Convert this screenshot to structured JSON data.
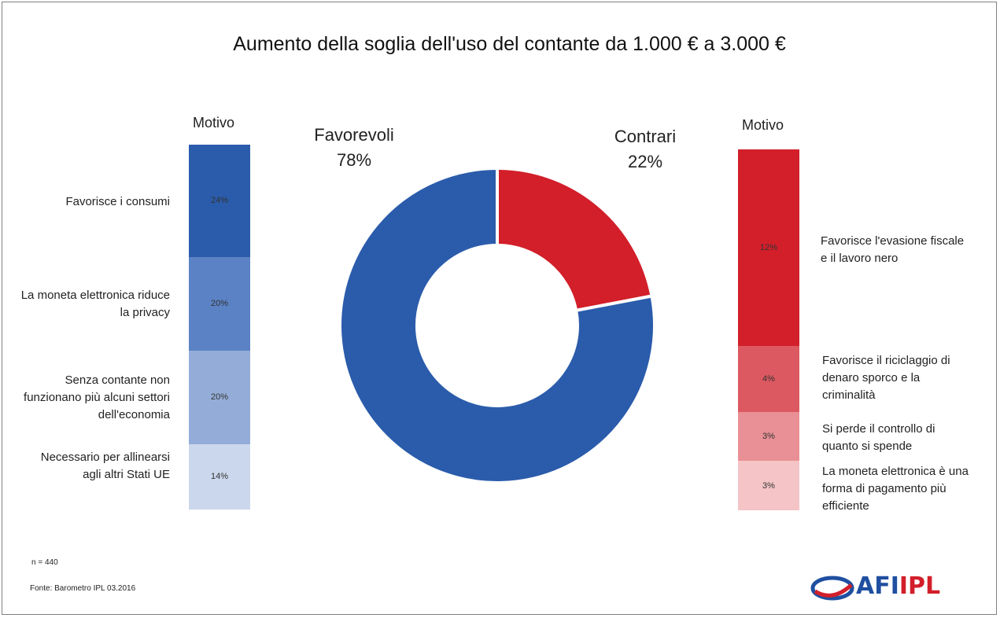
{
  "title": "Aumento della soglia dell'uso del contante da 1.000 € a 3.000 €",
  "left_panel": {
    "heading": "Motivo",
    "segments": [
      {
        "value_label": "24%",
        "reason": "Favorisce i consumi",
        "color": "#2b5cab"
      },
      {
        "value_label": "20%",
        "reason": "La moneta elettronica riduce la privacy",
        "color": "#5b82c4"
      },
      {
        "value_label": "20%",
        "reason": "Senza contante non funzionano più alcuni settori dell'economia",
        "color": "#93add8"
      },
      {
        "value_label": "14%",
        "reason": "Necessario per allinearsi agli altri Stati UE",
        "color": "#cbd7ec"
      }
    ]
  },
  "right_panel": {
    "heading": "Motivo",
    "segments": [
      {
        "value_label": "12%",
        "reason": "Favorisce l'evasione fiscale e il lavoro nero",
        "color": "#d21f2a"
      },
      {
        "value_label": "4%",
        "reason": "Favorisce il riciclaggio di denaro sporco e la criminalità",
        "color": "#dc5961"
      },
      {
        "value_label": "3%",
        "reason": "Si perde il controllo di quanto si spende",
        "color": "#e89095"
      },
      {
        "value_label": "3%",
        "reason": "La moneta elettronica è una forma di pagamento più efficiente",
        "color": "#f4c4c6"
      }
    ]
  },
  "donut_labels": {
    "favorevoli_name": "Favorevoli",
    "favorevoli_value": "78%",
    "contrari_name": "Contrari",
    "contrari_value": "22%"
  },
  "chart_data": [
    {
      "type": "pie",
      "style": "donut",
      "categories": [
        "Favorevoli",
        "Contrari"
      ],
      "values": [
        78,
        22
      ],
      "colors": [
        "#2b5cab",
        "#d21f2a"
      ]
    },
    {
      "type": "bar",
      "style": "stacked-vertical",
      "categories": [
        "Favorisce i consumi",
        "La moneta elettronica riduce la privacy",
        "Senza contante non funzionano più alcuni settori dell'economia",
        "Necessario per allinearsi agli altri Stati UE"
      ],
      "values": [
        24,
        20,
        20,
        14
      ],
      "unit": "%"
    },
    {
      "type": "bar",
      "style": "stacked-vertical",
      "categories": [
        "Favorisce l'evasione fiscale e il lavoro nero",
        "Favorisce il riciclaggio di denaro sporco e la criminalità",
        "Si perde il controllo di quanto si spende",
        "La moneta elettronica è una forma di pagamento più efficiente"
      ],
      "values": [
        12,
        4,
        3,
        3
      ],
      "unit": "%"
    }
  ],
  "footer": {
    "n": "n = 440",
    "source": "Fonte: Barometro IPL 03.2016"
  },
  "logo": {
    "text_a": "AFI",
    "text_b": "IPL",
    "color_a": "#1f4fa0",
    "color_b": "#d21f2a"
  }
}
